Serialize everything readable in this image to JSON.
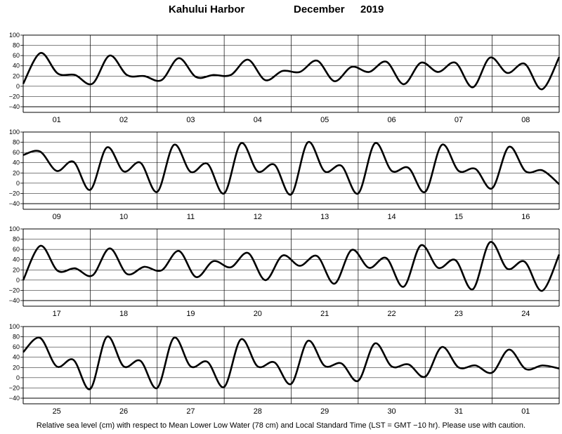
{
  "header": {
    "station": "Kahului Harbor",
    "month": "December",
    "year": "2019"
  },
  "footnote": "Relative sea level (cm) with respect to Mean Lower Low Water (78 cm) and Local Standard Time (LST = GMT −10 hr). Please use with caution.",
  "chart_data": {
    "type": "line",
    "title": "Kahului Harbor December 2019",
    "ylabel": "",
    "xlabel": "",
    "ylim": [
      -40,
      100
    ],
    "yticks": [
      "100",
      "80",
      "60",
      "40",
      "20",
      "0",
      "−20",
      "−40"
    ],
    "grid": true,
    "panels": [
      {
        "days": [
          "01",
          "02",
          "03",
          "04",
          "05",
          "06",
          "07",
          "08"
        ],
        "series": [
          {
            "values": [
              5,
              65,
              25,
              22,
              5,
              60,
              22,
              20,
              12,
              55,
              18,
              22,
              22,
              52,
              12,
              30,
              28,
              50,
              10,
              38,
              28,
              48,
              4,
              46,
              28,
              46,
              -2,
              56,
              26,
              44,
              -6,
              57
            ]
          }
        ]
      },
      {
        "days": [
          "09",
          "10",
          "11",
          "12",
          "13",
          "14",
          "15",
          "16"
        ],
        "series": [
          {
            "values": [
              55,
              62,
              24,
              42,
              -13,
              70,
              23,
              40,
              -17,
              75,
              22,
              38,
              -20,
              78,
              23,
              36,
              -22,
              80,
              23,
              34,
              -20,
              78,
              24,
              30,
              -17,
              75,
              24,
              28,
              -10,
              71,
              23,
              25,
              -2
            ]
          }
        ]
      },
      {
        "days": [
          "17",
          "18",
          "19",
          "20",
          "21",
          "22",
          "23",
          "24"
        ],
        "series": [
          {
            "values": [
              0,
              67,
              18,
              23,
              9,
              62,
              12,
              26,
              19,
              57,
              6,
              37,
              25,
              53,
              0,
              48,
              28,
              47,
              -7,
              59,
              24,
              43,
              -13,
              68,
              24,
              39,
              -18,
              74,
              22,
              36,
              -21,
              50
            ]
          }
        ]
      },
      {
        "days": [
          "25",
          "26",
          "27",
          "28",
          "29",
          "30",
          "31",
          "01"
        ],
        "series": [
          {
            "values": [
              50,
              78,
              22,
              35,
              -22,
              80,
              22,
              33,
              -20,
              78,
              22,
              31,
              -18,
              75,
              22,
              30,
              -12,
              72,
              23,
              28,
              -6,
              67,
              22,
              26,
              2,
              60,
              20,
              24,
              10,
              55,
              17,
              24,
              18
            ]
          }
        ]
      }
    ]
  }
}
